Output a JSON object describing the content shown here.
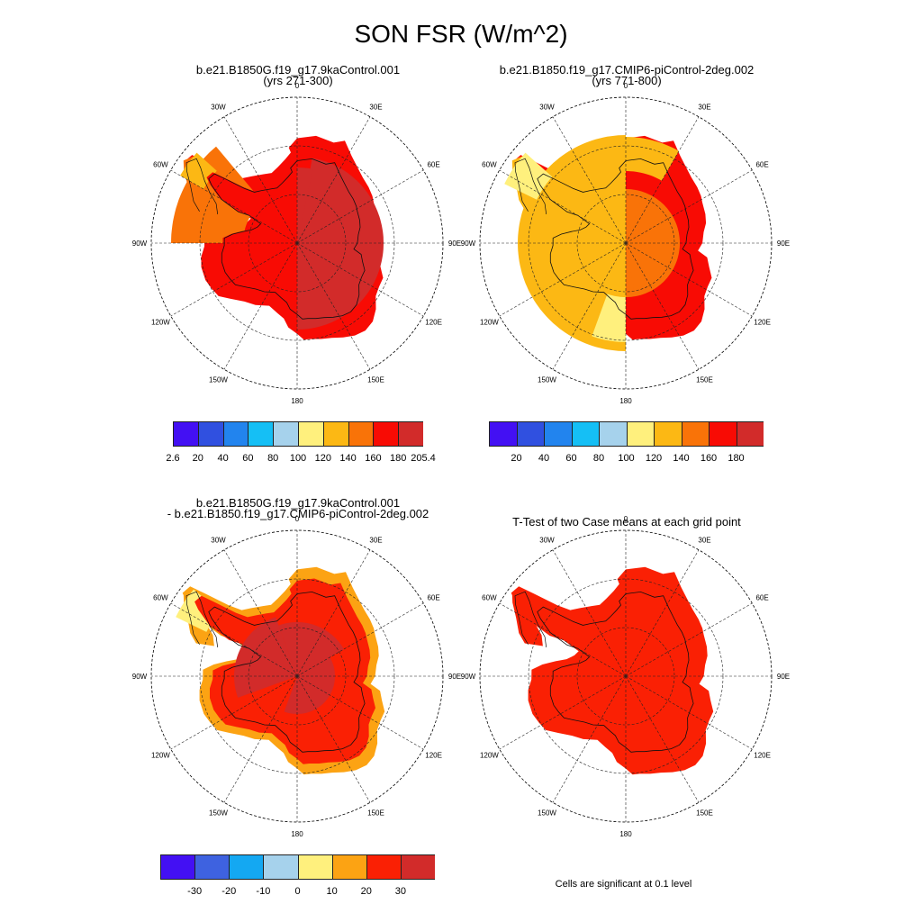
{
  "title": "SON FSR (W/m^2)",
  "panels": [
    {
      "title1": "b.e21.B1850G.f19_g17.9kaControl.001",
      "title2": "(yrs 271-300)"
    },
    {
      "title1": "b.e21.B1850.f19_g17.CMIP6-piControl-2deg.002",
      "title2": "(yrs 771-800)"
    },
    {
      "title1": "b.e21.B1850G.f19_g17.9kaControl.001",
      "title2": "- b.e21.B1850.f19_g17.CMIP6-piControl-2deg.002"
    },
    {
      "title1": "T-Test of two Case means at each grid point",
      "title2": ""
    }
  ],
  "lon_labels": [
    "0",
    "30E",
    "60E",
    "90E",
    "120E",
    "150E",
    "180",
    "150W",
    "120W",
    "90W",
    "60W",
    "30W"
  ],
  "colorbar_abs": {
    "colors": [
      "#4310f3",
      "#3050e0",
      "#2284ee",
      "#15bff5",
      "#a6d2ec",
      "#fff07d",
      "#fcb814",
      "#f97308",
      "#f80b04",
      "#d22b2a"
    ],
    "labels_case1": [
      "2.6",
      "20",
      "40",
      "60",
      "80",
      "100",
      "120",
      "140",
      "160",
      "180",
      "205.4"
    ],
    "labels_case2": [
      "20",
      "40",
      "60",
      "80",
      "100",
      "120",
      "140",
      "160",
      "180"
    ]
  },
  "colorbar_diff": {
    "colors": [
      "#4310f3",
      "#3e62e0",
      "#14a8f2",
      "#a6d2ec",
      "#fff07d",
      "#fca313",
      "#fa2004",
      "#d22b2a"
    ],
    "labels": [
      "-30",
      "-20",
      "-10",
      "0",
      "10",
      "20",
      "30"
    ]
  },
  "significance_note": "Cells are significant at 0.1 level"
}
